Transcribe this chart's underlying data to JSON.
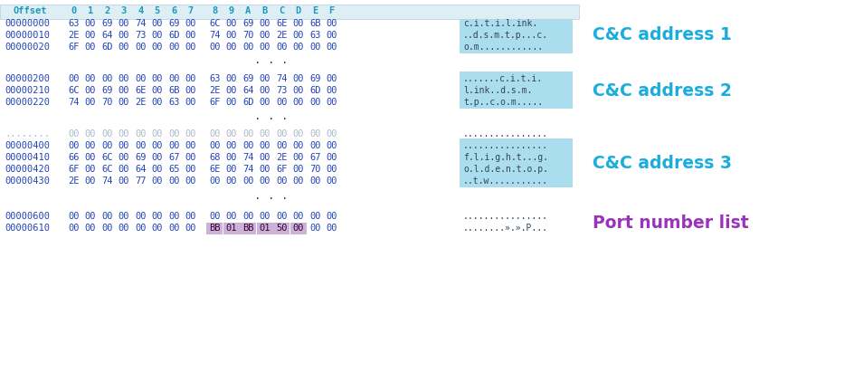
{
  "bg_color": "#ffffff",
  "header_bg": "#ddeef5",
  "header_text_color": "#1a9abf",
  "row_text_color": "#2244bb",
  "ascii_bg": "#aaddee",
  "label_color_addr": "#1aacdd",
  "label_color_port": "#9933bb",
  "port_highlight_bg": "#bb99cc",
  "dots_color": "#333333",
  "header_offset": "Offset",
  "header_cols": [
    "0",
    "1",
    "2",
    "3",
    "4",
    "5",
    "6",
    "7",
    "8",
    "9",
    "A",
    "B",
    "C",
    "D",
    "E",
    "F"
  ],
  "sec1_rows": [
    [
      "00000000",
      "63 00 69 00 74 00 69 00",
      "6C 00 69 00 6E 00 6B 00",
      "c.i.t.i.l.ink."
    ],
    [
      "00000010",
      "2E 00 64 00 73 00 6D 00",
      "74 00 70 00 2E 00 63 00",
      "..d.s.m.t.p...c."
    ],
    [
      "00000020",
      "6F 00 6D 00 00 00 00 00",
      "00 00 00 00 00 00 00 00",
      "o.m............"
    ]
  ],
  "sec1_label": "C&C address 1",
  "sec2_rows": [
    [
      "00000200",
      "00 00 00 00 00 00 00 00",
      "63 00 69 00 74 00 69 00",
      ".......c.i.t.i."
    ],
    [
      "00000210",
      "6C 00 69 00 6E 00 6B 00",
      "2E 00 64 00 73 00 6D 00",
      "l.ink..d.s.m."
    ],
    [
      "00000220",
      "74 00 70 00 2E 00 63 00",
      "6F 00 6D 00 00 00 00 00",
      "t.p..c.o.m....."
    ]
  ],
  "sec2_label": "C&C address 2",
  "sec3_rows": [
    [
      "00000400",
      "00 00 00 00 00 00 00 00",
      "00 00 00 00 00 00 00 00",
      "................"
    ],
    [
      "00000410",
      "66 00 6C 00 69 00 67 00",
      "68 00 74 00 2E 00 67 00",
      "f.l.i.g.h.t...g."
    ],
    [
      "00000420",
      "6F 00 6C 00 64 00 65 00",
      "6E 00 74 00 6F 00 70 00",
      "o.l.d.e.n.t.o.p."
    ],
    [
      "00000430",
      "2E 00 74 00 77 00 00 00",
      "00 00 00 00 00 00 00 00",
      "..t.w..........."
    ]
  ],
  "sec3_faded_row": [
    "........",
    "00 00 00 00 00 00 00 00",
    "00 00 00 00 00 00 00 00",
    "................"
  ],
  "sec3_label": "C&C address 3",
  "sec4_rows": [
    [
      "00000600",
      "00 00 00 00 00 00 00 00",
      "00 00 00 00 00 00 00 00",
      "................"
    ],
    [
      "00000610",
      "00 00 00 00 00 00 00 00",
      "BB 01 BB 01 50 00 00 00",
      "........».».P..."
    ]
  ],
  "sec4_label": "Port number list",
  "port_highlight_indices": [
    0,
    1,
    2,
    3,
    4,
    5
  ]
}
